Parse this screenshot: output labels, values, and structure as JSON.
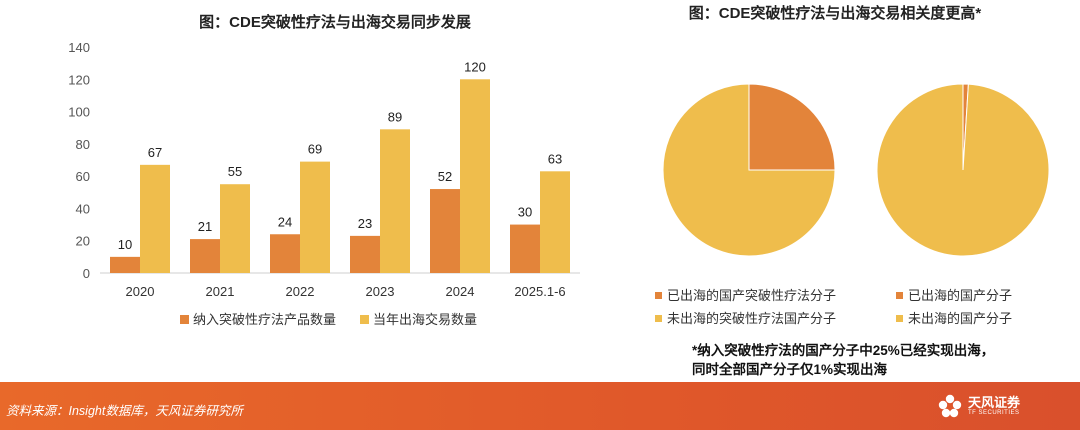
{
  "chart_data": [
    {
      "type": "bar",
      "title": "图：CDE突破性疗法与出海交易同步发展",
      "categories": [
        "2020",
        "2021",
        "2022",
        "2023",
        "2024",
        "2025.1-6"
      ],
      "series": [
        {
          "name": "纳入突破性疗法产品数量",
          "values": [
            10,
            21,
            24,
            23,
            52,
            30
          ],
          "color": "#e3843a"
        },
        {
          "name": "当年出海交易数量",
          "values": [
            67,
            55,
            69,
            89,
            120,
            63
          ],
          "color": "#efbd4c"
        }
      ],
      "ylim": [
        0,
        140
      ],
      "yticks": [
        0,
        20,
        40,
        60,
        80,
        100,
        120,
        140
      ],
      "grid": false,
      "legend": "bottom"
    },
    {
      "type": "pie",
      "title": "图：CDE突破性疗法与出海交易相关度更高*",
      "pies": [
        {
          "slices": [
            {
              "label": "已出海的国产突破性疗法分子",
              "value": 25,
              "color": "#e3843a"
            },
            {
              "label": "未出海的突破性疗法国产分子",
              "value": 75,
              "color": "#efbd4c"
            }
          ]
        },
        {
          "slices": [
            {
              "label": "已出海的国产分子",
              "value": 1,
              "color": "#e3843a"
            },
            {
              "label": "未出海的国产分子",
              "value": 99,
              "color": "#efbd4c"
            }
          ]
        }
      ],
      "legend": "bottom",
      "note": [
        "*纳入突破性疗法的国产分子中25%已经实现出海，",
        "同时全部国产分子仅1%实现出海"
      ]
    }
  ],
  "footer": {
    "source": "资料来源：Insight数据库，天风证券研究所",
    "brand_cn": "天风证券",
    "brand_en": "TF SECURITIES",
    "brand_icon": "flower-logo-icon"
  }
}
